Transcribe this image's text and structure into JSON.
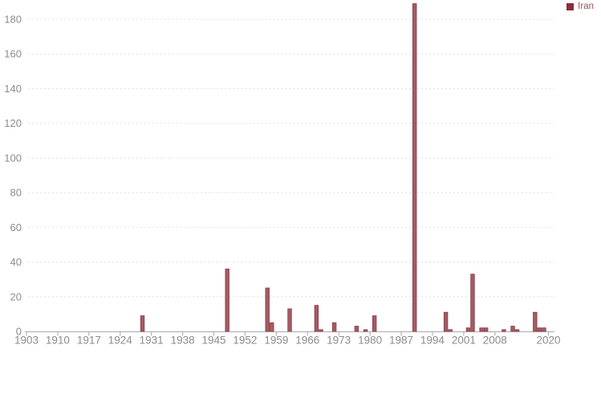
{
  "chart_data": {
    "type": "bar",
    "title": "",
    "xlabel": "",
    "ylabel": "",
    "legend_position": "top-right",
    "x_axis": {
      "tick_labels": [
        "1903",
        "1910",
        "1917",
        "1924",
        "1931",
        "1938",
        "1945",
        "1952",
        "1959",
        "1966",
        "1973",
        "1980",
        "1987",
        "1994",
        "2001",
        "2008",
        "2020"
      ],
      "tick_years": [
        1903,
        1910,
        1917,
        1924,
        1931,
        1938,
        1945,
        1952,
        1959,
        1966,
        1973,
        1980,
        1987,
        1994,
        2001,
        2008,
        2020
      ],
      "min_year": 1903,
      "max_year": 2020
    },
    "y_axis": {
      "ticks": [
        0,
        20,
        40,
        60,
        80,
        100,
        120,
        140,
        160,
        180
      ],
      "tick_labels": [
        "0",
        "20",
        "40",
        "60",
        "80",
        "100",
        "120",
        "140",
        "160",
        "180"
      ],
      "range": [
        0,
        190
      ],
      "gridlines": "dashed"
    },
    "series": [
      {
        "name": "Iran",
        "points": [
          {
            "year": 1929,
            "value": 9
          },
          {
            "year": 1948,
            "value": 36
          },
          {
            "year": 1957,
            "value": 25
          },
          {
            "year": 1958,
            "value": 5
          },
          {
            "year": 1962,
            "value": 13
          },
          {
            "year": 1968,
            "value": 15
          },
          {
            "year": 1969,
            "value": 1
          },
          {
            "year": 1972,
            "value": 5
          },
          {
            "year": 1977,
            "value": 3
          },
          {
            "year": 1979,
            "value": 1
          },
          {
            "year": 1981,
            "value": 9
          },
          {
            "year": 1990,
            "value": 189
          },
          {
            "year": 1997,
            "value": 11
          },
          {
            "year": 1998,
            "value": 1
          },
          {
            "year": 2002,
            "value": 2
          },
          {
            "year": 2003,
            "value": 33
          },
          {
            "year": 2005,
            "value": 2
          },
          {
            "year": 2006,
            "value": 2
          },
          {
            "year": 2010,
            "value": 1
          },
          {
            "year": 2012,
            "value": 3
          },
          {
            "year": 2013,
            "value": 1
          },
          {
            "year": 2017,
            "value": 11
          },
          {
            "year": 2018,
            "value": 2
          },
          {
            "year": 2019,
            "value": 2
          }
        ]
      }
    ]
  },
  "legend": {
    "label": "Iran"
  },
  "colors": {
    "bar_fill": "#a35c63",
    "bar_border": "#8d3a46",
    "legend_swatch": "#8b2e3f",
    "legend_text": "#9c5158",
    "axis_line": "#b3b3b3",
    "grid_line": "#e0e0e0",
    "tick_text": "#8c8c8c",
    "background": "#ffffff"
  }
}
